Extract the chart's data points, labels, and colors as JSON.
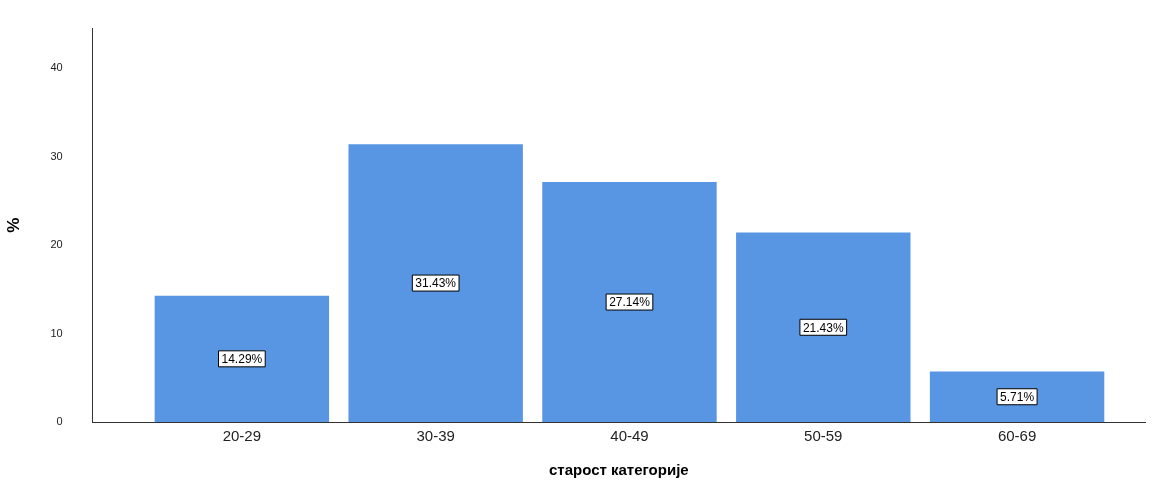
{
  "chart_data": {
    "type": "bar",
    "xlabel": "старост категорије",
    "ylabel": "%",
    "categories": [
      "20-29",
      "30-39",
      "40-49",
      "50-59",
      "60-69"
    ],
    "values": [
      14.29,
      31.43,
      27.14,
      21.43,
      5.71
    ],
    "value_labels": [
      "14.29%",
      "31.43%",
      "27.14%",
      "21.43%",
      "5.71%"
    ],
    "color": "#5896e4",
    "ylim": [
      0,
      44.5
    ],
    "yticks": [
      0,
      10,
      20,
      30,
      40
    ],
    "grid": false,
    "legend": false
  }
}
